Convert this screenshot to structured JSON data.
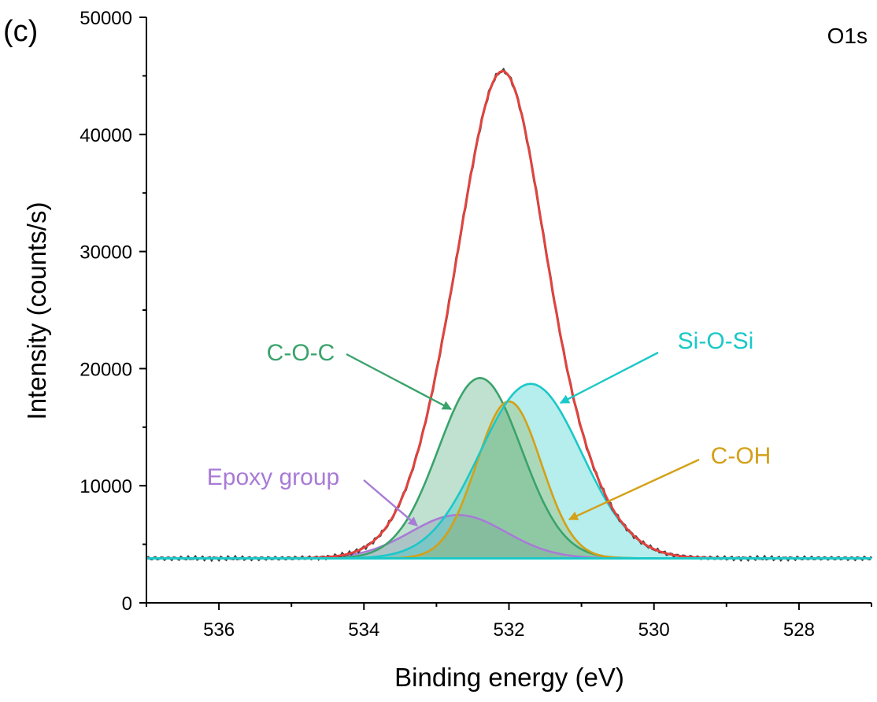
{
  "chart_data": {
    "type": "line",
    "panel_label": "(c)",
    "corner_label": "O1s",
    "xlabel": "Binding energy (eV)",
    "ylabel": "Intensity (counts/s)",
    "xlim": [
      537,
      527
    ],
    "ylim": [
      0,
      50000
    ],
    "x_reversed": true,
    "x_ticks": [
      "536",
      "534",
      "532",
      "530",
      "528"
    ],
    "x_tick_values": [
      536,
      534,
      532,
      530,
      528
    ],
    "y_ticks": [
      "0",
      "10000",
      "20000",
      "30000",
      "40000",
      "50000"
    ],
    "y_tick_values": [
      0,
      10000,
      20000,
      30000,
      40000,
      50000
    ],
    "baseline": 3800,
    "series": [
      {
        "name": "Epoxy group",
        "type": "gaussian",
        "center": 532.7,
        "height": 3700,
        "fwhm": 1.55,
        "color": "#a87bd6"
      },
      {
        "name": "C-O-C",
        "type": "gaussian",
        "center": 532.4,
        "height": 15400,
        "fwhm": 1.35,
        "color": "#3aa36b"
      },
      {
        "name": "C-OH",
        "type": "gaussian",
        "center": 532.0,
        "height": 13400,
        "fwhm": 1.05,
        "color": "#d4a017"
      },
      {
        "name": "Si-O-Si",
        "type": "gaussian",
        "center": 531.7,
        "height": 14900,
        "fwhm": 1.65,
        "color": "#1bc8c8"
      }
    ],
    "envelope_color": "#e8413c",
    "raw_data_color": "#444444",
    "annotations": [
      {
        "text": "C-O-C",
        "color": "#3aa36b"
      },
      {
        "text": "Si-O-Si",
        "color": "#1bc8c8"
      },
      {
        "text": "C-OH",
        "color": "#d4a017"
      },
      {
        "text": "Epoxy group",
        "color": "#a87bd6"
      }
    ]
  }
}
